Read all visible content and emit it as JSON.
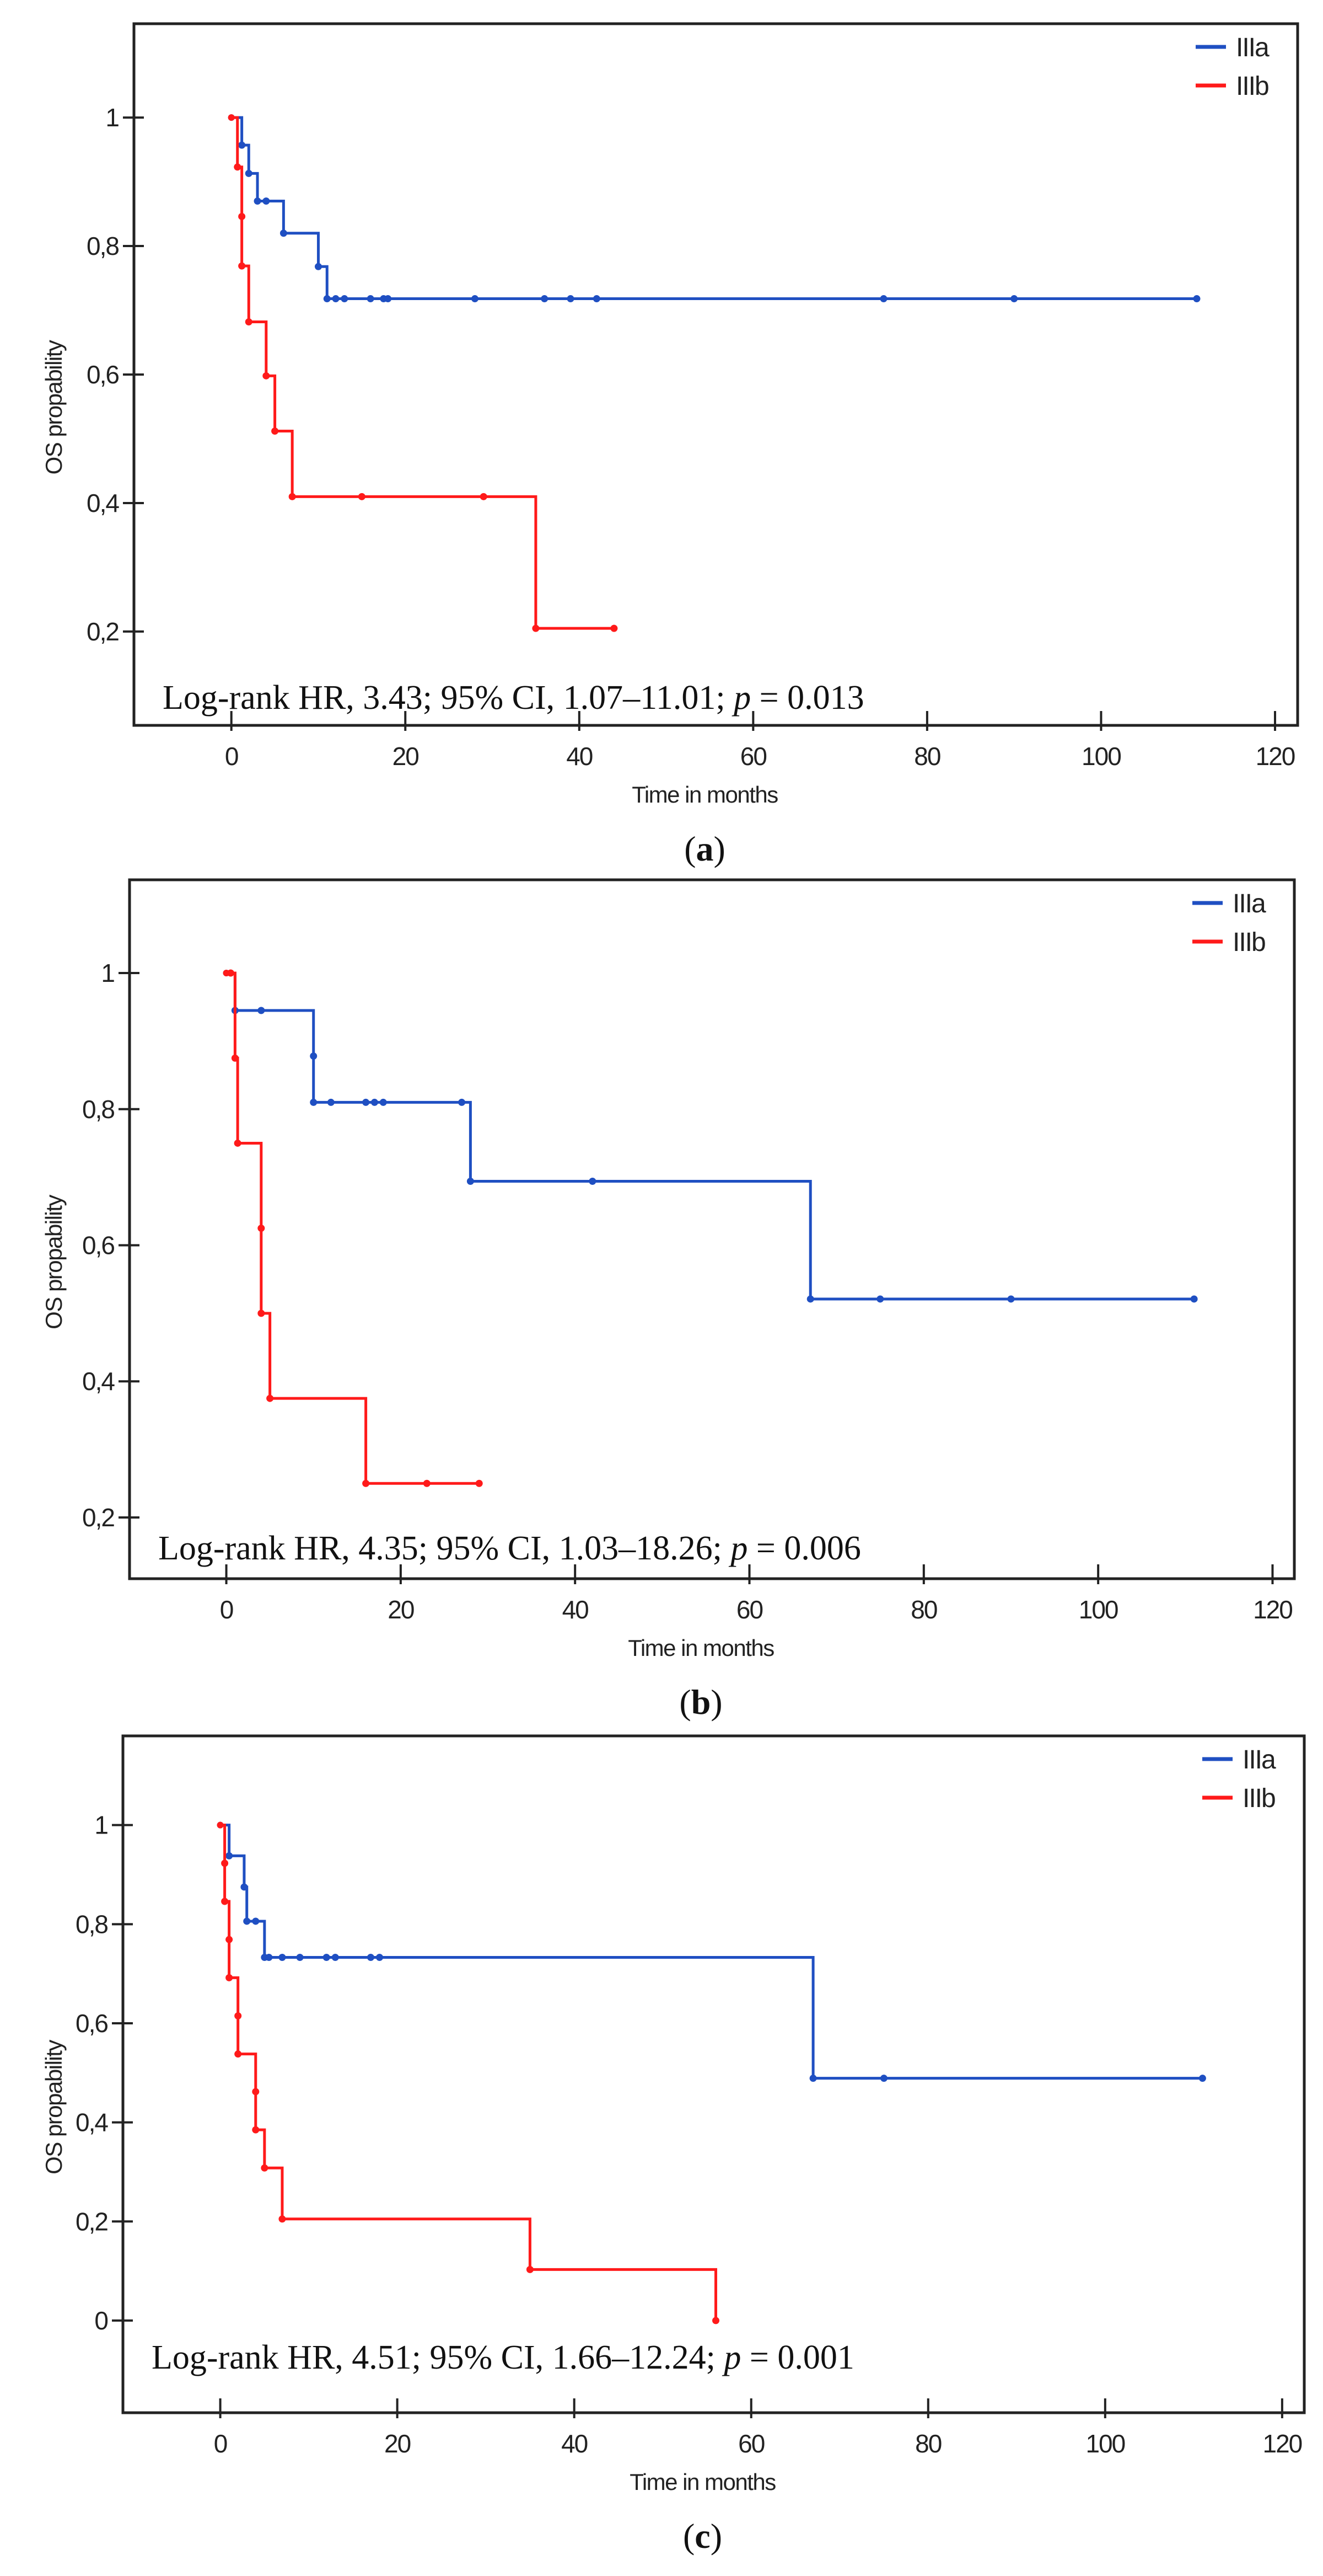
{
  "chart_data": [
    {
      "panel_label": "a",
      "panel_open": "(",
      "panel_close": ")",
      "type": "line",
      "subtype": "kaplan-meier-step",
      "xlabel": "Time in months",
      "ylabel": "OS propability",
      "xlim": [
        -11.2,
        122.6
      ],
      "ylim": [
        0.054,
        1.146
      ],
      "xticks": [
        0,
        20,
        40,
        60,
        80,
        100,
        120
      ],
      "xtick_labels": [
        "0",
        "20",
        "40",
        "60",
        "80",
        "100",
        "120"
      ],
      "yticks": [
        0.2,
        0.4,
        0.6,
        0.8,
        1
      ],
      "ytick_labels": [
        "0,2",
        "0,4",
        "0,6",
        "0,8",
        "1"
      ],
      "grid": false,
      "legend_placement": "top-right",
      "annotation": {
        "prefix": "Log-rank HR, 3.43; 95% CI, 1.07–11.01; ",
        "p_symbol": "p",
        "p_value": " = 0.013"
      },
      "series": [
        {
          "name": "IIIa",
          "color": "#1f4fc2",
          "steps": [
            [
              1.2,
              0.957
            ],
            [
              2,
              0.913
            ],
            [
              3,
              0.87
            ],
            [
              6,
              0.82
            ],
            [
              10,
              0.768
            ],
            [
              11,
              0.718
            ]
          ],
          "censored": [
            4,
            12,
            13,
            16,
            17.5,
            18,
            28,
            36,
            39,
            42,
            75,
            90,
            111
          ]
        },
        {
          "name": "IIIb",
          "color": "#ff1a1a",
          "steps": [
            [
              0.7,
              0.923
            ],
            [
              1.2,
              0.846
            ],
            [
              1.2,
              0.769
            ],
            [
              2,
              0.682
            ],
            [
              4,
              0.598
            ],
            [
              5,
              0.512
            ],
            [
              7,
              0.41
            ],
            [
              35,
              0.205
            ]
          ],
          "censored": [
            15,
            29,
            44
          ]
        }
      ]
    },
    {
      "panel_label": "b",
      "panel_open": "(",
      "panel_close": ")",
      "type": "line",
      "subtype": "kaplan-meier-step",
      "xlabel": "Time in months",
      "ylabel": "OS propability",
      "xlim": [
        -11.1,
        122.5
      ],
      "ylim": [
        0.11,
        1.137
      ],
      "xticks": [
        0,
        20,
        40,
        60,
        80,
        100,
        120
      ],
      "xtick_labels": [
        "0",
        "20",
        "40",
        "60",
        "80",
        "100",
        "120"
      ],
      "yticks": [
        0.2,
        0.4,
        0.6,
        0.8,
        1
      ],
      "ytick_labels": [
        "0,2",
        "0,4",
        "0,6",
        "0,8",
        "1"
      ],
      "grid": false,
      "legend_placement": "top-right",
      "annotation": {
        "prefix": "Log-rank HR, 4.35; 95% CI, 1.03–18.26; ",
        "p_symbol": "p",
        "p_value": " = 0.006"
      },
      "series": [
        {
          "name": "IIIa",
          "color": "#1f4fc2",
          "steps": [
            [
              1,
              0.945
            ],
            [
              10,
              0.878
            ],
            [
              10,
              0.81
            ],
            [
              28,
              0.694
            ],
            [
              67,
              0.521
            ]
          ],
          "censored": [
            4,
            12,
            16,
            17,
            18,
            27,
            42,
            75,
            90,
            111
          ]
        },
        {
          "name": "IIIb",
          "color": "#ff1a1a",
          "steps": [
            [
              1,
              0.875
            ],
            [
              1.3,
              0.75
            ],
            [
              4,
              0.625
            ],
            [
              4,
              0.5
            ],
            [
              5,
              0.375
            ],
            [
              16,
              0.25
            ]
          ],
          "censored": [
            0.5,
            23,
            29
          ]
        }
      ]
    },
    {
      "panel_label": "c",
      "panel_open": "(",
      "panel_close": ")",
      "type": "line",
      "subtype": "kaplan-meier-step",
      "xlabel": "Time in months",
      "ylabel": "OS propability",
      "xlim": [
        -11.0,
        122.5
      ],
      "ylim": [
        -0.186,
        1.18
      ],
      "xticks": [
        0,
        20,
        40,
        60,
        80,
        100,
        120
      ],
      "xtick_labels": [
        "0",
        "20",
        "40",
        "60",
        "80",
        "100",
        "120"
      ],
      "yticks": [
        0,
        0.2,
        0.4,
        0.6,
        0.8,
        1
      ],
      "ytick_labels": [
        "0",
        "0,2",
        "0,4",
        "0,6",
        "0,8",
        "1"
      ],
      "grid": false,
      "legend_placement": "top-right",
      "annotation": {
        "prefix": "Log-rank HR, 4.51; 95% CI, 1.66–12.24; ",
        "p_symbol": "p",
        "p_value": " = 0.001"
      },
      "series": [
        {
          "name": "IIIa",
          "color": "#1f4fc2",
          "steps": [
            [
              1,
              0.938
            ],
            [
              2.7,
              0.875
            ],
            [
              3,
              0.806
            ],
            [
              5,
              0.733
            ],
            [
              67,
              0.489
            ]
          ],
          "censored": [
            4,
            5.5,
            7,
            9,
            12,
            13,
            17,
            18,
            75,
            111
          ]
        },
        {
          "name": "IIIb",
          "color": "#ff1a1a",
          "steps": [
            [
              0.5,
              0.923
            ],
            [
              0.5,
              0.846
            ],
            [
              1,
              0.769
            ],
            [
              1,
              0.692
            ],
            [
              2,
              0.615
            ],
            [
              2,
              0.538
            ],
            [
              4,
              0.462
            ],
            [
              4,
              0.385
            ],
            [
              5,
              0.308
            ],
            [
              7,
              0.205
            ],
            [
              35,
              0.103
            ],
            [
              56,
              0
            ]
          ],
          "censored": []
        }
      ]
    }
  ]
}
